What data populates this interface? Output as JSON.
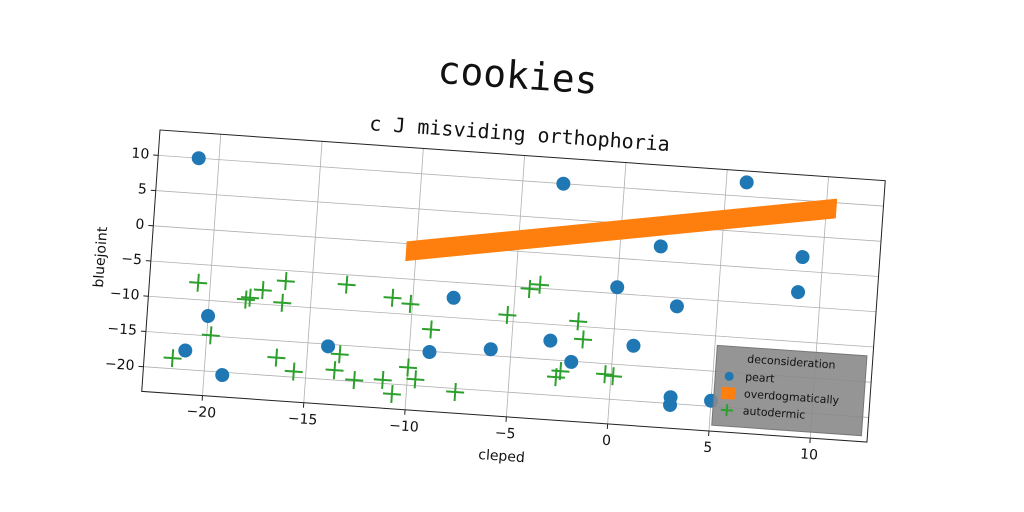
{
  "chart_data": {
    "type": "scatter",
    "title": "cookies",
    "subtitle": "c J misviding orthophoria",
    "x_label": "cleped",
    "y_label": "bluejoint",
    "xlim": [
      -23,
      12.8
    ],
    "ylim": [
      -23.5,
      13.6
    ],
    "xticks": [
      {
        "value": -20,
        "label": "−20"
      },
      {
        "value": -15,
        "label": "−15"
      },
      {
        "value": -10,
        "label": "−10"
      },
      {
        "value": -5,
        "label": "−5"
      },
      0,
      5,
      10
    ],
    "yticks": [
      {
        "value": -20,
        "label": "−20"
      },
      {
        "value": -15,
        "label": "−15"
      },
      {
        "value": -10,
        "label": "−10"
      },
      {
        "value": -5,
        "label": "−5"
      },
      0,
      5,
      10
    ],
    "grid": true,
    "legend_title": "deconsideration",
    "legend_position": "lower right",
    "series": [
      {
        "name": "peart",
        "marker": "circle",
        "color": "#1f77b4",
        "x": [
          -21,
          -3,
          6,
          2,
          9,
          8.9,
          3,
          0,
          -8,
          -20,
          -21,
          -19.1,
          -14,
          -9,
          -6,
          -3.1,
          -2,
          1,
          3,
          3,
          5
        ],
        "y": [
          10,
          10,
          12,
          2.1,
          2,
          -3,
          -6.2,
          -4.1,
          -7.2,
          -12.2,
          -17.3,
          -20.4,
          -15.3,
          -15.1,
          -14.1,
          -12.3,
          -15.1,
          -12.2,
          -19.1,
          -20.2,
          -19.2
        ]
      },
      {
        "name": "overdogmatically",
        "marker": "band",
        "color": "#ff7f0e",
        "x": [
          -10.5,
          10.5
        ],
        "lower": [
          -2.5,
          7.8
        ],
        "upper": [
          0.3,
          10.6
        ]
      },
      {
        "name": "autodermic",
        "marker": "plus",
        "color": "#2ca02c",
        "x": [
          -20.6,
          -19.8,
          -21.6,
          -18,
          -18.2,
          -17.4,
          -16.4,
          -16.3,
          -16.5,
          -15.6,
          -13.6,
          -13.4,
          -13.3,
          -12.6,
          -11.2,
          -10.7,
          -11,
          -10.1,
          -10,
          -9.6,
          -9,
          -7.6,
          -5.3,
          -4.3,
          -3.8,
          -2.7,
          -2.5,
          -1.8,
          -1.5,
          -0.3,
          0.1
        ],
        "y": [
          -7.6,
          -14.9,
          -18.5,
          -9.2,
          -9.5,
          -8,
          -9.6,
          -6.5,
          -17.4,
          -19.2,
          -18.6,
          -16.3,
          -6.4,
          -19.8,
          -19.5,
          -21.4,
          -7.8,
          -8.5,
          -17.5,
          -19.1,
          -11.9,
          -20.5,
          -9.1,
          -5.2,
          -4.5,
          -17.4,
          -16.5,
          -9.3,
          -11.8,
          -16.5,
          -16.7
        ]
      }
    ]
  }
}
